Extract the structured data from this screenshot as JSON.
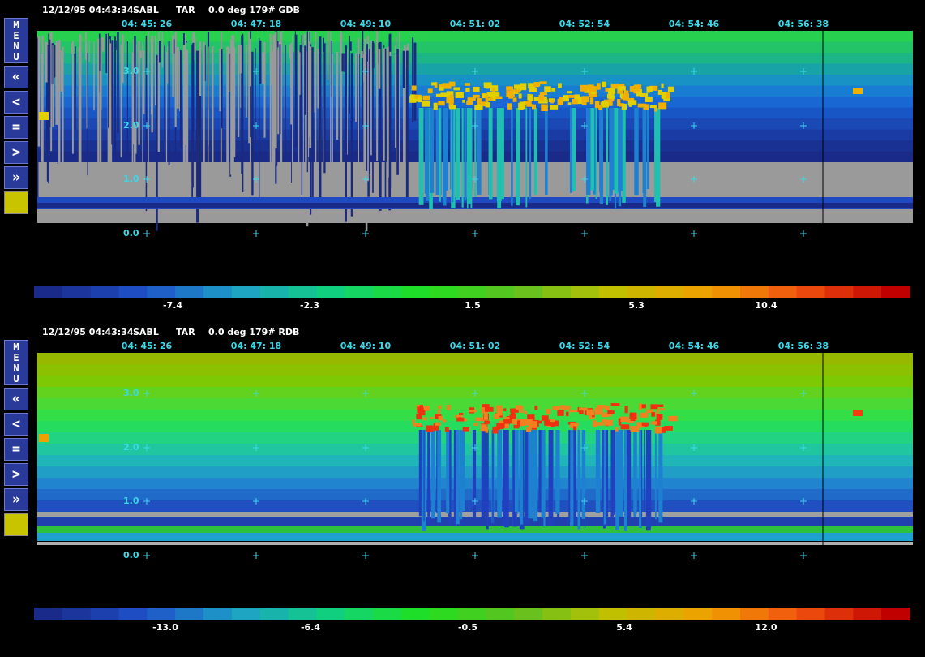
{
  "menu": {
    "label": "MENU",
    "buttons": [
      "«",
      "<",
      "=",
      ">",
      "»"
    ]
  },
  "panels": [
    {
      "date_time": "12/12/95 04:43:34",
      "site": "SABL",
      "mode": "TAR",
      "info": "0.0 deg 179# GDB",
      "time_labels": [
        "04: 45: 26",
        "04: 47: 18",
        "04: 49: 10",
        "04: 51: 02",
        "04: 52: 54",
        "04: 54: 46",
        "04: 56: 38"
      ],
      "height_labels": [
        "3.0",
        "2.0",
        "1.0",
        "0.0"
      ],
      "colorbar_labels": [
        "-7.4",
        "-2.3",
        "1.5",
        "5.3",
        "10.4"
      ]
    },
    {
      "date_time": "12/12/95 04:43:34",
      "site": "SABL",
      "mode": "TAR",
      "info": "0.0 deg 179# RDB",
      "time_labels": [
        "04: 45: 26",
        "04: 47: 18",
        "04: 49: 10",
        "04: 51: 02",
        "04: 52: 54",
        "04: 54: 46",
        "04: 56: 38"
      ],
      "height_labels": [
        "3.0",
        "2.0",
        "1.0",
        "0.0"
      ],
      "colorbar_labels": [
        "-13.0",
        "-6.4",
        "-0.5",
        "5.4",
        "12.0"
      ]
    }
  ]
}
